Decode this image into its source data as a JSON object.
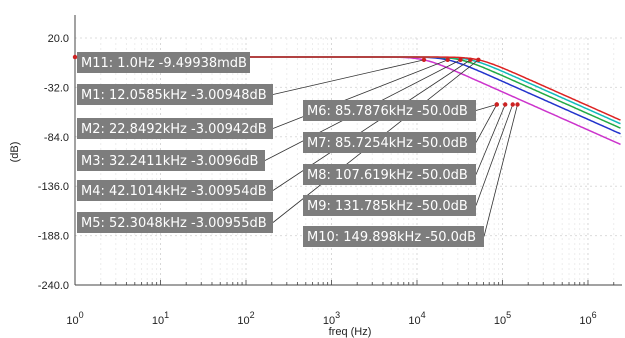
{
  "chart_data": {
    "type": "line",
    "xlabel": "freq (Hz)",
    "ylabel": "(dB)",
    "x_scale": "log",
    "xlim": [
      1,
      2500000
    ],
    "ylim": [
      -240,
      20
    ],
    "grid": true,
    "y_ticks": [
      {
        "value": 20,
        "label": "20.0"
      },
      {
        "value": -32,
        "label": "-32.0"
      },
      {
        "value": -84,
        "label": "-84.0"
      },
      {
        "value": -136,
        "label": "-136.0"
      },
      {
        "value": -188,
        "label": "-188.0"
      },
      {
        "value": -240,
        "label": "-240.0"
      }
    ],
    "x_ticks": [
      {
        "value": 1,
        "base": "10",
        "exp": "0"
      },
      {
        "value": 10,
        "base": "10",
        "exp": "1"
      },
      {
        "value": 100,
        "base": "10",
        "exp": "2"
      },
      {
        "value": 1000,
        "base": "10",
        "exp": "3"
      },
      {
        "value": 10000,
        "base": "10",
        "exp": "4"
      },
      {
        "value": 100000,
        "base": "10",
        "exp": "5"
      },
      {
        "value": 1000000,
        "base": "10",
        "exp": "6"
      }
    ],
    "series": [
      {
        "color": "#cc33cc",
        "fc": 12058.5,
        "order": 2
      },
      {
        "color": "#2233cc",
        "fc": 22849.2,
        "order": 2
      },
      {
        "color": "#22aa44",
        "fc": 32241.1,
        "order": 2
      },
      {
        "color": "#11bbbb",
        "fc": 42101.4,
        "order": 2
      },
      {
        "color": "#dd2222",
        "fc": 52304.8,
        "order": 2
      }
    ],
    "markers": [
      {
        "id": "M11",
        "x": 1,
        "y": -0.00949,
        "text": "M11: 1.0Hz -9.49938mdB"
      },
      {
        "id": "M1",
        "x": 12058.5,
        "y": -3.00948,
        "text": "M1: 12.0585kHz -3.00948dB"
      },
      {
        "id": "M2",
        "x": 22849.2,
        "y": -3.00942,
        "text": "M2: 22.8492kHz -3.00942dB"
      },
      {
        "id": "M3",
        "x": 32241.1,
        "y": -3.0096,
        "text": "M3: 32.2411kHz -3.0096dB"
      },
      {
        "id": "M4",
        "x": 42101.4,
        "y": -3.00954,
        "text": "M4: 42.1014kHz -3.00954dB"
      },
      {
        "id": "M5",
        "x": 52304.8,
        "y": -3.00955,
        "text": "M5: 52.3048kHz -3.00955dB"
      },
      {
        "id": "M6",
        "x": 85787.6,
        "y": -50.0,
        "text": "M6: 85.7876kHz -50.0dB"
      },
      {
        "id": "M7",
        "x": 85725.4,
        "y": -50.0,
        "text": "M7: 85.7254kHz -50.0dB"
      },
      {
        "id": "M8",
        "x": 107619,
        "y": -50.0,
        "text": "M8: 107.619kHz -50.0dB"
      },
      {
        "id": "M9",
        "x": 131785,
        "y": -50.0,
        "text": "M9: 131.785kHz -50.0dB"
      },
      {
        "id": "M10",
        "x": 149898,
        "y": -50.0,
        "text": "M10: 149.898kHz -50.0dB"
      }
    ]
  },
  "colors": {
    "background": "#ffffff",
    "label_box": "#7d7d7d",
    "leader_line": "#333333",
    "grid": "#dddddd"
  }
}
